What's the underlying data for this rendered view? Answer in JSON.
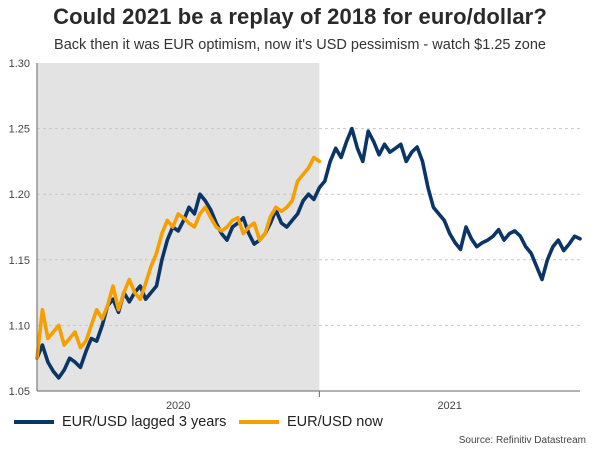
{
  "header": {
    "title": "Could 2021 be a replay of 2018 for euro/dollar?",
    "subtitle": "Back then it was EUR optimism, now it's USD pessimism - watch $1.25 zone"
  },
  "legend": [
    {
      "label": "EUR/USD lagged 3 years",
      "color": "#0b3566"
    },
    {
      "label": "EUR/USD now",
      "color": "#f5a000"
    }
  ],
  "source": "Source: Refinitiv Datastream",
  "chart_data": {
    "type": "line",
    "title": "Could 2021 be a replay of 2018 for euro/dollar?",
    "xlabel": "",
    "ylabel": "",
    "xlim": [
      0,
      100
    ],
    "ylim": [
      1.05,
      1.3
    ],
    "yticks": [
      "1.05",
      "1.10",
      "1.15",
      "1.20",
      "1.25",
      "1.30"
    ],
    "xtick_labels": [
      {
        "label": "2020",
        "x": 26
      },
      {
        "label": "2021",
        "x": 76
      }
    ],
    "shaded_region": {
      "from": 0,
      "to": 52,
      "color": "#e3e3e3"
    },
    "grid": "horizontal-dashed",
    "series": [
      {
        "name": "EUR/USD lagged 3 years",
        "color": "#0b3566",
        "x": [
          0,
          1,
          2,
          3,
          4,
          5,
          6,
          7,
          8,
          9,
          10,
          11,
          12,
          13,
          14,
          15,
          16,
          17,
          18,
          19,
          20,
          21,
          22,
          23,
          24,
          25,
          26,
          27,
          28,
          29,
          30,
          31,
          32,
          33,
          34,
          35,
          36,
          37,
          38,
          39,
          40,
          41,
          42,
          43,
          44,
          45,
          46,
          47,
          48,
          49,
          50,
          51,
          52,
          53,
          54,
          55,
          56,
          57,
          58,
          59,
          60,
          61,
          62,
          63,
          64,
          65,
          66,
          67,
          68,
          69,
          70,
          71,
          72,
          73,
          74,
          75,
          76,
          77,
          78,
          79,
          80,
          81,
          82,
          83,
          84,
          85,
          86,
          87,
          88,
          89,
          90,
          91,
          92,
          93,
          94,
          95,
          96,
          97,
          98,
          99,
          100
        ],
        "values": [
          1.075,
          1.085,
          1.072,
          1.065,
          1.06,
          1.066,
          1.075,
          1.072,
          1.068,
          1.08,
          1.09,
          1.088,
          1.1,
          1.115,
          1.12,
          1.11,
          1.125,
          1.118,
          1.125,
          1.13,
          1.12,
          1.125,
          1.13,
          1.15,
          1.165,
          1.175,
          1.172,
          1.18,
          1.19,
          1.185,
          1.2,
          1.195,
          1.188,
          1.178,
          1.17,
          1.165,
          1.175,
          1.178,
          1.182,
          1.17,
          1.162,
          1.165,
          1.17,
          1.178,
          1.188,
          1.178,
          1.175,
          1.18,
          1.185,
          1.195,
          1.2,
          1.196,
          1.205,
          1.21,
          1.225,
          1.235,
          1.228,
          1.24,
          1.25,
          1.235,
          1.225,
          1.248,
          1.24,
          1.23,
          1.238,
          1.232,
          1.235,
          1.238,
          1.225,
          1.232,
          1.236,
          1.225,
          1.205,
          1.19,
          1.185,
          1.18,
          1.17,
          1.163,
          1.158,
          1.175,
          1.166,
          1.16,
          1.163,
          1.165,
          1.168,
          1.173,
          1.165,
          1.17,
          1.172,
          1.168,
          1.16,
          1.155,
          1.145,
          1.135,
          1.15,
          1.16,
          1.165,
          1.157,
          1.162,
          1.168,
          1.166
        ]
      },
      {
        "name": "EUR/USD now",
        "color": "#f5a000",
        "x": [
          0,
          1,
          2,
          3,
          4,
          5,
          6,
          7,
          8,
          9,
          10,
          11,
          12,
          13,
          14,
          15,
          16,
          17,
          18,
          19,
          20,
          21,
          22,
          23,
          24,
          25,
          26,
          27,
          28,
          29,
          30,
          31,
          32,
          33,
          34,
          35,
          36,
          37,
          38,
          39,
          40,
          41,
          42,
          43,
          44,
          45,
          46,
          47,
          48,
          49,
          50,
          51,
          52
        ],
        "values": [
          1.075,
          1.112,
          1.09,
          1.095,
          1.1,
          1.085,
          1.09,
          1.095,
          1.083,
          1.088,
          1.1,
          1.112,
          1.105,
          1.115,
          1.13,
          1.112,
          1.125,
          1.135,
          1.125,
          1.12,
          1.132,
          1.145,
          1.155,
          1.17,
          1.18,
          1.175,
          1.185,
          1.182,
          1.178,
          1.175,
          1.185,
          1.19,
          1.182,
          1.175,
          1.172,
          1.175,
          1.18,
          1.182,
          1.17,
          1.175,
          1.178,
          1.165,
          1.17,
          1.183,
          1.19,
          1.187,
          1.19,
          1.195,
          1.21,
          1.215,
          1.22,
          1.228,
          1.225
        ]
      }
    ]
  }
}
